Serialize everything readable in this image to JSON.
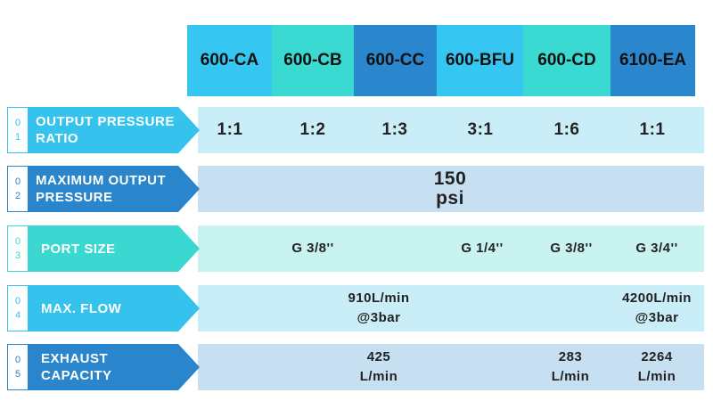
{
  "header": {
    "columns": [
      "600-CA",
      "600-CB",
      "600-CC",
      "600-BFU",
      "600-CD",
      "6100-EA"
    ]
  },
  "rows": [
    {
      "number": [
        "0",
        "1"
      ],
      "label": "OUTPUT  PRESSURE RATIO",
      "cells": [
        "1:1",
        "1:2",
        "1:3",
        "3:1",
        "1:6",
        "1:1"
      ]
    },
    {
      "number": [
        "0",
        "2"
      ],
      "label": "MAXIMUM OUTPUT PRESSURE",
      "cells": [
        "150  psi"
      ]
    },
    {
      "number": [
        "0",
        "3"
      ],
      "label": "PORT SIZE",
      "cells": [
        "G 3/8''",
        "G 1/4''",
        "G 3/8''",
        "G 3/4''"
      ]
    },
    {
      "number": [
        "0",
        "4"
      ],
      "label": "MAX. FLOW",
      "cells": [
        "910L/min @3bar",
        "4200L/min @3bar"
      ]
    },
    {
      "number": [
        "0",
        "5"
      ],
      "label": "EXHAUST CAPACITY",
      "cells": [
        "425 L/min",
        "283 L/min",
        "2264 L/min"
      ]
    }
  ]
}
